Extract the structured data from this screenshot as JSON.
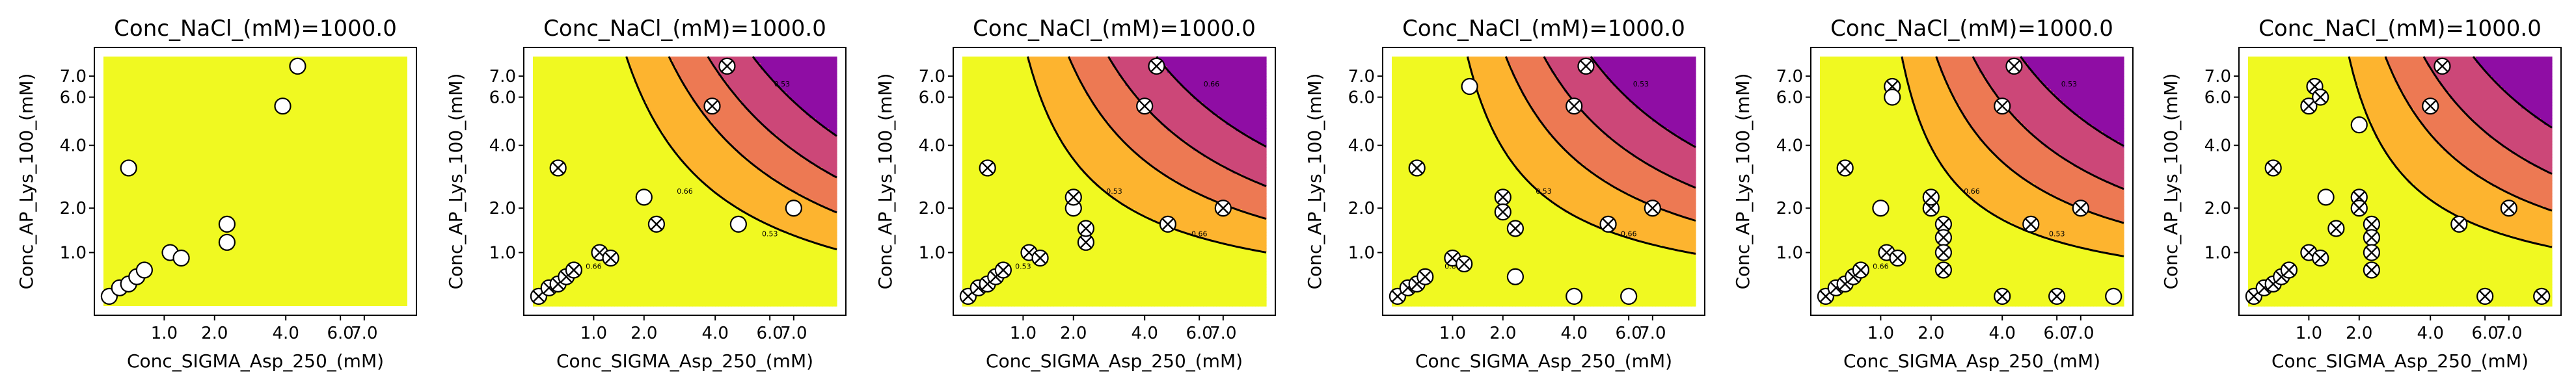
{
  "chart_data": [
    {
      "type": "contour",
      "title": "Conc_NaCl_(mM)=1000.0",
      "xlabel": "Conc_SIGMA_Asp_250_(mM)",
      "ylabel": "Conc_AP_Lys_100_(mM)",
      "xticks": [
        "1.0",
        "2.0",
        "4.0",
        "6.0",
        "7.0"
      ],
      "yticks": [
        "1.0",
        "2.0",
        "4.0",
        "6.0",
        "7.0"
      ],
      "contour_labels": [],
      "points": [
        {
          "x": 0.3,
          "y": 0.35,
          "marker": "open"
        },
        {
          "x": 0.4,
          "y": 0.45,
          "marker": "open"
        },
        {
          "x": 0.5,
          "y": 0.5,
          "marker": "open"
        },
        {
          "x": 0.6,
          "y": 0.6,
          "marker": "open"
        },
        {
          "x": 0.7,
          "y": 0.7,
          "marker": "open"
        },
        {
          "x": 0.5,
          "y": 3.2,
          "marker": "open"
        },
        {
          "x": 1.1,
          "y": 1.0,
          "marker": "open"
        },
        {
          "x": 1.3,
          "y": 0.9,
          "marker": "open"
        },
        {
          "x": 2.3,
          "y": 1.2,
          "marker": "open"
        },
        {
          "x": 2.3,
          "y": 1.6,
          "marker": "open"
        },
        {
          "x": 3.9,
          "y": 5.6,
          "marker": "open"
        },
        {
          "x": 4.4,
          "y": 7.5,
          "marker": "open"
        }
      ]
    },
    {
      "type": "contour",
      "title": "Conc_NaCl_(mM)=1000.0",
      "xlabel": "Conc_SIGMA_Asp_250_(mM)",
      "ylabel": "Conc_AP_Lys_100_(mM)",
      "xticks": [
        "1.0",
        "2.0",
        "4.0",
        "6.0",
        "7.0"
      ],
      "yticks": [
        "1.0",
        "2.0",
        "4.0",
        "6.0",
        "7.0"
      ],
      "contour_labels": [
        "0.66",
        "0.53",
        "0.66",
        "0.53"
      ],
      "points": [
        {
          "x": 0.3,
          "y": 0.35,
          "marker": "x"
        },
        {
          "x": 0.4,
          "y": 0.45,
          "marker": "x"
        },
        {
          "x": 0.5,
          "y": 0.5,
          "marker": "x"
        },
        {
          "x": 0.6,
          "y": 0.6,
          "marker": "x"
        },
        {
          "x": 0.7,
          "y": 0.7,
          "marker": "x"
        },
        {
          "x": 0.5,
          "y": 3.2,
          "marker": "x"
        },
        {
          "x": 1.1,
          "y": 1.0,
          "marker": "x"
        },
        {
          "x": 1.3,
          "y": 0.9,
          "marker": "x"
        },
        {
          "x": 2.0,
          "y": 2.3,
          "marker": "open"
        },
        {
          "x": 2.3,
          "y": 1.6,
          "marker": "x"
        },
        {
          "x": 3.9,
          "y": 5.6,
          "marker": "x"
        },
        {
          "x": 4.4,
          "y": 7.5,
          "marker": "x"
        },
        {
          "x": 4.8,
          "y": 1.6,
          "marker": "open"
        },
        {
          "x": 7.0,
          "y": 2.0,
          "marker": "open"
        }
      ]
    },
    {
      "type": "contour",
      "title": "Conc_NaCl_(mM)=1000.0",
      "xlabel": "Conc_SIGMA_Asp_250_(mM)",
      "ylabel": "Conc_AP_Lys_100_(mM)",
      "xticks": [
        "1.0",
        "2.0",
        "4.0",
        "6.0",
        "7.0"
      ],
      "yticks": [
        "1.0",
        "2.0",
        "4.0",
        "6.0",
        "7.0"
      ],
      "contour_labels": [
        "0.53",
        "0.66",
        "0.53",
        "0.66"
      ],
      "points": [
        {
          "x": 0.3,
          "y": 0.35,
          "marker": "x"
        },
        {
          "x": 0.4,
          "y": 0.45,
          "marker": "x"
        },
        {
          "x": 0.5,
          "y": 0.5,
          "marker": "x"
        },
        {
          "x": 0.6,
          "y": 0.6,
          "marker": "x"
        },
        {
          "x": 0.7,
          "y": 0.7,
          "marker": "x"
        },
        {
          "x": 0.5,
          "y": 3.2,
          "marker": "x"
        },
        {
          "x": 1.1,
          "y": 1.0,
          "marker": "x"
        },
        {
          "x": 1.3,
          "y": 0.9,
          "marker": "x"
        },
        {
          "x": 2.0,
          "y": 2.0,
          "marker": "open"
        },
        {
          "x": 2.0,
          "y": 2.3,
          "marker": "x"
        },
        {
          "x": 2.3,
          "y": 1.2,
          "marker": "x"
        },
        {
          "x": 2.3,
          "y": 1.5,
          "marker": "x"
        },
        {
          "x": 4.4,
          "y": 7.5,
          "marker": "x"
        },
        {
          "x": 4.0,
          "y": 5.6,
          "marker": "x"
        },
        {
          "x": 4.8,
          "y": 1.6,
          "marker": "x"
        },
        {
          "x": 7.0,
          "y": 2.0,
          "marker": "x"
        }
      ]
    },
    {
      "type": "contour",
      "title": "Conc_NaCl_(mM)=1000.0",
      "xlabel": "Conc_SIGMA_Asp_250_(mM)",
      "ylabel": "Conc_AP_Lys_100_(mM)",
      "xticks": [
        "1.0",
        "2.0",
        "4.0",
        "6.0",
        "7.0"
      ],
      "yticks": [
        "1.0",
        "2.0",
        "4.0",
        "6.0",
        "7.0"
      ],
      "contour_labels": [
        "0.66",
        "0.53",
        "0.53",
        "0.66"
      ],
      "points": [
        {
          "x": 0.3,
          "y": 0.35,
          "marker": "x"
        },
        {
          "x": 0.4,
          "y": 0.45,
          "marker": "x"
        },
        {
          "x": 0.5,
          "y": 0.5,
          "marker": "x"
        },
        {
          "x": 0.6,
          "y": 0.6,
          "marker": "x"
        },
        {
          "x": 0.5,
          "y": 3.2,
          "marker": "x"
        },
        {
          "x": 1.0,
          "y": 0.9,
          "marker": "x"
        },
        {
          "x": 1.2,
          "y": 0.8,
          "marker": "x"
        },
        {
          "x": 1.3,
          "y": 6.5,
          "marker": "open"
        },
        {
          "x": 2.0,
          "y": 2.3,
          "marker": "x"
        },
        {
          "x": 2.0,
          "y": 1.9,
          "marker": "x"
        },
        {
          "x": 2.3,
          "y": 1.5,
          "marker": "x"
        },
        {
          "x": 2.3,
          "y": 0.6,
          "marker": "open"
        },
        {
          "x": 4.0,
          "y": 5.6,
          "marker": "x"
        },
        {
          "x": 4.4,
          "y": 7.5,
          "marker": "x"
        },
        {
          "x": 4.0,
          "y": 0.35,
          "marker": "open"
        },
        {
          "x": 5.2,
          "y": 1.6,
          "marker": "x"
        },
        {
          "x": 6.0,
          "y": 0.35,
          "marker": "open"
        },
        {
          "x": 7.0,
          "y": 2.0,
          "marker": "x"
        }
      ]
    },
    {
      "type": "contour",
      "title": "Conc_NaCl_(mM)=1000.0",
      "xlabel": "Conc_SIGMA_Asp_250_(mM)",
      "ylabel": "Conc_AP_Lys_100_(mM)",
      "xticks": [
        "1.0",
        "2.0",
        "4.0",
        "6.0",
        "7.0"
      ],
      "yticks": [
        "1.0",
        "2.0",
        "4.0",
        "6.0",
        "7.0"
      ],
      "contour_labels": [
        "0.66",
        "0.53",
        "0.66",
        "0.53"
      ],
      "points": [
        {
          "x": 0.3,
          "y": 0.35,
          "marker": "x"
        },
        {
          "x": 0.4,
          "y": 0.45,
          "marker": "x"
        },
        {
          "x": 0.5,
          "y": 0.5,
          "marker": "x"
        },
        {
          "x": 0.6,
          "y": 0.6,
          "marker": "x"
        },
        {
          "x": 0.7,
          "y": 0.7,
          "marker": "x"
        },
        {
          "x": 0.5,
          "y": 3.2,
          "marker": "x"
        },
        {
          "x": 1.0,
          "y": 2.0,
          "marker": "open"
        },
        {
          "x": 1.2,
          "y": 6.5,
          "marker": "x"
        },
        {
          "x": 1.2,
          "y": 6.0,
          "marker": "open"
        },
        {
          "x": 1.1,
          "y": 1.0,
          "marker": "x"
        },
        {
          "x": 1.3,
          "y": 0.9,
          "marker": "x"
        },
        {
          "x": 2.0,
          "y": 2.0,
          "marker": "x"
        },
        {
          "x": 2.0,
          "y": 2.3,
          "marker": "x"
        },
        {
          "x": 2.3,
          "y": 1.6,
          "marker": "x"
        },
        {
          "x": 2.3,
          "y": 1.3,
          "marker": "x"
        },
        {
          "x": 2.3,
          "y": 1.0,
          "marker": "x"
        },
        {
          "x": 2.3,
          "y": 0.7,
          "marker": "x"
        },
        {
          "x": 4.0,
          "y": 5.6,
          "marker": "x"
        },
        {
          "x": 4.4,
          "y": 7.5,
          "marker": "x"
        },
        {
          "x": 4.0,
          "y": 0.35,
          "marker": "x"
        },
        {
          "x": 5.0,
          "y": 1.6,
          "marker": "x"
        },
        {
          "x": 6.0,
          "y": 0.35,
          "marker": "x"
        },
        {
          "x": 7.0,
          "y": 2.0,
          "marker": "x"
        },
        {
          "x": 8.5,
          "y": 0.35,
          "marker": "open"
        }
      ]
    },
    {
      "type": "contour",
      "title": "Conc_NaCl_(mM)=1000.0",
      "xlabel": "Conc_SIGMA_Asp_250_(mM)",
      "ylabel": "Conc_AP_Lys_100_(mM)",
      "xticks": [
        "1.0",
        "2.0",
        "4.0",
        "6.0",
        "7.0"
      ],
      "yticks": [
        "1.0",
        "2.0",
        "4.0",
        "6.0",
        "7.0"
      ],
      "contour_labels": [],
      "points": [
        {
          "x": 0.3,
          "y": 0.35,
          "marker": "x"
        },
        {
          "x": 0.4,
          "y": 0.45,
          "marker": "x"
        },
        {
          "x": 0.5,
          "y": 0.5,
          "marker": "x"
        },
        {
          "x": 0.6,
          "y": 0.6,
          "marker": "x"
        },
        {
          "x": 0.7,
          "y": 0.7,
          "marker": "x"
        },
        {
          "x": 0.5,
          "y": 3.2,
          "marker": "x"
        },
        {
          "x": 1.0,
          "y": 5.6,
          "marker": "x"
        },
        {
          "x": 1.1,
          "y": 6.5,
          "marker": "x"
        },
        {
          "x": 1.2,
          "y": 6.0,
          "marker": "x"
        },
        {
          "x": 1.3,
          "y": 2.3,
          "marker": "open"
        },
        {
          "x": 1.0,
          "y": 1.0,
          "marker": "x"
        },
        {
          "x": 1.2,
          "y": 0.9,
          "marker": "x"
        },
        {
          "x": 1.5,
          "y": 1.5,
          "marker": "x"
        },
        {
          "x": 2.0,
          "y": 4.8,
          "marker": "open"
        },
        {
          "x": 2.0,
          "y": 2.3,
          "marker": "x"
        },
        {
          "x": 2.0,
          "y": 2.0,
          "marker": "x"
        },
        {
          "x": 2.3,
          "y": 1.6,
          "marker": "x"
        },
        {
          "x": 2.3,
          "y": 1.3,
          "marker": "x"
        },
        {
          "x": 2.3,
          "y": 1.0,
          "marker": "x"
        },
        {
          "x": 2.3,
          "y": 0.7,
          "marker": "x"
        },
        {
          "x": 4.0,
          "y": 5.6,
          "marker": "x"
        },
        {
          "x": 4.4,
          "y": 7.5,
          "marker": "x"
        },
        {
          "x": 5.0,
          "y": 1.6,
          "marker": "x"
        },
        {
          "x": 6.0,
          "y": 0.35,
          "marker": "x"
        },
        {
          "x": 7.0,
          "y": 2.0,
          "marker": "x"
        },
        {
          "x": 8.5,
          "y": 0.35,
          "marker": "x"
        }
      ]
    }
  ]
}
